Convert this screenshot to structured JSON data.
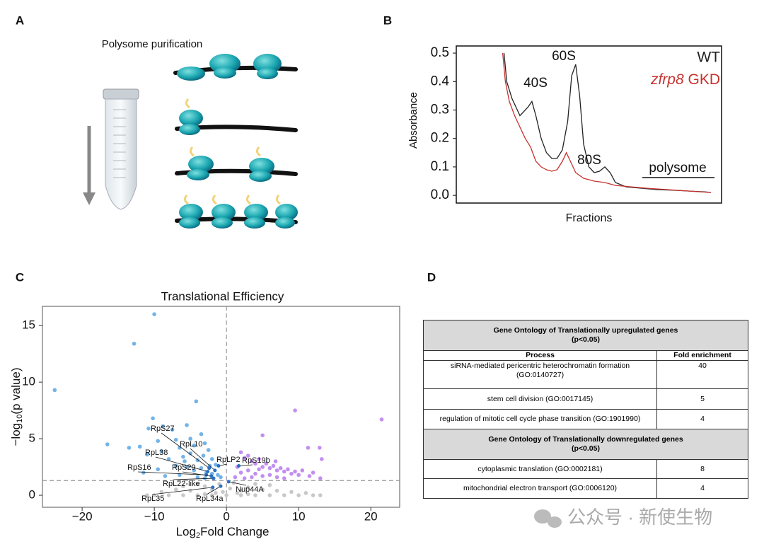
{
  "panel_labels": [
    "A",
    "B",
    "C",
    "D"
  ],
  "diagram": {
    "title": "Polysome purification"
  },
  "chart_data": [
    {
      "type": "line",
      "xlabel": "Fractions",
      "ylabel": "Absorbance",
      "xlim": [
        0,
        100
      ],
      "ylim": [
        -0.027,
        0.525
      ],
      "yticks": [
        {
          "value": 0,
          "label": "0.0"
        },
        0.1,
        0.2,
        0.3,
        0.4,
        0.5
      ],
      "series": [
        {
          "name": "WT",
          "color": "#222222",
          "x": [
            18,
            19,
            21,
            24,
            27,
            28.5,
            30,
            32,
            34,
            36,
            38,
            40,
            42,
            43.5,
            45,
            46.5,
            48,
            50,
            52,
            54,
            56,
            58,
            60,
            64,
            70,
            76,
            82,
            88,
            94,
            96
          ],
          "values": [
            0.5,
            0.4,
            0.34,
            0.28,
            0.31,
            0.33,
            0.28,
            0.2,
            0.15,
            0.13,
            0.13,
            0.16,
            0.26,
            0.42,
            0.46,
            0.35,
            0.18,
            0.1,
            0.08,
            0.085,
            0.1,
            0.08,
            0.045,
            0.03,
            0.025,
            0.02,
            0.018,
            0.015,
            0.012,
            0.01
          ]
        },
        {
          "name": "zfrp8 GKD",
          "color": "#c8322e",
          "x": [
            17.5,
            18.5,
            20,
            22,
            24,
            26,
            28,
            30,
            32,
            34,
            36,
            38,
            40,
            41.5,
            43,
            45,
            48,
            52,
            56,
            60,
            66,
            72,
            80,
            88,
            96
          ],
          "values": [
            0.5,
            0.4,
            0.33,
            0.28,
            0.24,
            0.2,
            0.17,
            0.12,
            0.1,
            0.09,
            0.085,
            0.09,
            0.12,
            0.15,
            0.12,
            0.08,
            0.06,
            0.05,
            0.045,
            0.035,
            0.03,
            0.025,
            0.02,
            0.015,
            0.01
          ]
        }
      ],
      "annotations": [
        "40S",
        "60S",
        "80S",
        "polysome"
      ]
    },
    {
      "type": "scatter",
      "title": "Translational Efficiency",
      "xlabel": "Log2Fold Change",
      "ylabel": "−log10(p value)",
      "xlim": [
        -25.5,
        24
      ],
      "ylim": [
        -1.06,
        16.7
      ],
      "xticks": [
        {
          "value": -20,
          "label": "−20"
        },
        {
          "value": -10,
          "label": "−10"
        },
        0,
        10,
        20
      ],
      "yticks": [
        0,
        5,
        10,
        15
      ],
      "vline": 0,
      "hline": 1.3,
      "series": [
        {
          "color": "#c8c8c8",
          "x": [
            -10,
            -8,
            -6,
            -4,
            -2,
            0,
            2,
            4,
            6,
            8,
            10,
            12,
            13,
            -11,
            -9,
            -7,
            -5,
            -3,
            -1,
            1,
            3,
            5,
            7,
            9,
            -2,
            -4,
            2,
            4,
            6,
            -6,
            0.5,
            -0.5,
            1.5,
            -1.5,
            11,
            -3,
            3
          ],
          "values": [
            0,
            0,
            0,
            0,
            0,
            0,
            0,
            0,
            0,
            0,
            0,
            0,
            0,
            0,
            0.3,
            0.5,
            0.4,
            0.8,
            1,
            1.1,
            0.7,
            0.5,
            0.4,
            0.3,
            0.5,
            1,
            0.4,
            1,
            0.9,
            0.8,
            0.6,
            0.3,
            0.2,
            0.2,
            0.2,
            0.1,
            0.1
          ]
        },
        {
          "color": "#72b3e8",
          "x": [
            -23.8,
            -10,
            -12.8,
            -10.2,
            -4.2,
            -16.5,
            -10.8,
            -8.8,
            -7.5,
            -5.5,
            -13.5,
            -12,
            -9.5,
            -7,
            -5,
            -3.5,
            -11,
            -9,
            -6.5,
            -4.5,
            -3,
            -2.5,
            -8,
            -6,
            -5,
            -4,
            -3.2,
            -2,
            -1.5,
            -7,
            -5.5,
            -4.5,
            -3.5,
            -2.8,
            -2,
            -1.2,
            -9.5,
            -6.5,
            -4,
            -3,
            -1.8,
            -11.5,
            -8.5,
            -0.8,
            -5.8,
            -2.3
          ],
          "values": [
            9.3,
            16,
            13.4,
            6.8,
            8.3,
            4.5,
            5.9,
            6.1,
            5.8,
            6.2,
            4.2,
            4.3,
            4.8,
            4.9,
            5,
            5.4,
            3.6,
            3.9,
            4.2,
            4.4,
            4.6,
            4,
            3.2,
            3.4,
            3.7,
            3.1,
            3.5,
            3.2,
            2.7,
            2.6,
            2.5,
            2.2,
            2.4,
            2,
            1.9,
            1.8,
            2.3,
            1.8,
            1.6,
            1.5,
            1.5,
            2,
            1.7,
            1.6,
            3,
            2.6
          ]
        },
        {
          "color": "#c28ef0",
          "x": [
            9.5,
            21.5,
            12.9,
            13.2,
            11.3,
            5,
            2,
            2.5,
            3,
            3.5,
            4,
            4.5,
            5,
            5.5,
            6,
            6.5,
            7,
            7.5,
            8,
            8.5,
            9,
            9.5,
            10,
            10.5,
            11.5,
            12,
            1.5,
            2,
            3,
            4,
            5,
            6,
            7,
            8,
            1.2,
            2.5,
            3.5,
            4.5,
            6.8,
            13
          ],
          "values": [
            7.5,
            6.7,
            4.2,
            3.2,
            4.2,
            5.3,
            3.8,
            3.3,
            3.5,
            3,
            2.8,
            3.2,
            2.5,
            2.8,
            2.4,
            2.6,
            2.2,
            2.4,
            2.1,
            2.3,
            1.9,
            2.1,
            1.8,
            2.2,
            1.7,
            2,
            2.5,
            2,
            2.2,
            1.9,
            1.7,
            1.8,
            1.6,
            1.5,
            1.6,
            1.5,
            1.6,
            2.3,
            3,
            1.5
          ]
        }
      ],
      "labels": [
        {
          "text": "RpS27",
          "x": -2.4,
          "y": 2.4
        },
        {
          "text": "RpL10",
          "x": -1.6,
          "y": 2.2
        },
        {
          "text": "RpL38",
          "x": -2.6,
          "y": 2.1
        },
        {
          "text": "RpLP2",
          "x": -1.1,
          "y": 2.6
        },
        {
          "text": "RpS19b",
          "x": 1.7,
          "y": 2.6
        },
        {
          "text": "RpS16",
          "x": -2.8,
          "y": 1.8
        },
        {
          "text": "RpS29",
          "x": -2.1,
          "y": 1.7
        },
        {
          "text": "RpL22-like",
          "x": -1.8,
          "y": 1.5
        },
        {
          "text": "Nup44A",
          "x": 0.3,
          "y": 1.2
        },
        {
          "text": "RpL35",
          "x": -1.9,
          "y": 0.7
        },
        {
          "text": "RpL34a",
          "x": -0.8,
          "y": 0.8
        }
      ]
    }
  ],
  "table": {
    "columns": [
      "Process",
      "Fold enrichment"
    ],
    "sections": [
      {
        "title": "Gene Ontology of Translationally upregulated genes",
        "subtitle": "(p<0.05)",
        "rows": [
          {
            "process": "siRNA-mediated pericentric heterochromatin formation (GO:0140727)",
            "fold": 40
          },
          {
            "process": "stem cell division (GO:0017145)",
            "fold": 5
          },
          {
            "process": "regulation of mitotic cell cycle phase transition (GO:1901990)",
            "fold": 4
          }
        ]
      },
      {
        "title": "Gene Ontology of Translationally downregulated genes",
        "subtitle": "(p<0.05)",
        "rows": [
          {
            "process": "cytoplasmic translation (GO:0002181)",
            "fold": 8
          },
          {
            "process": "mitochondrial electron transport (GO:0006120)",
            "fold": 4
          }
        ]
      }
    ]
  },
  "watermark": "公众号 · 新使生物"
}
